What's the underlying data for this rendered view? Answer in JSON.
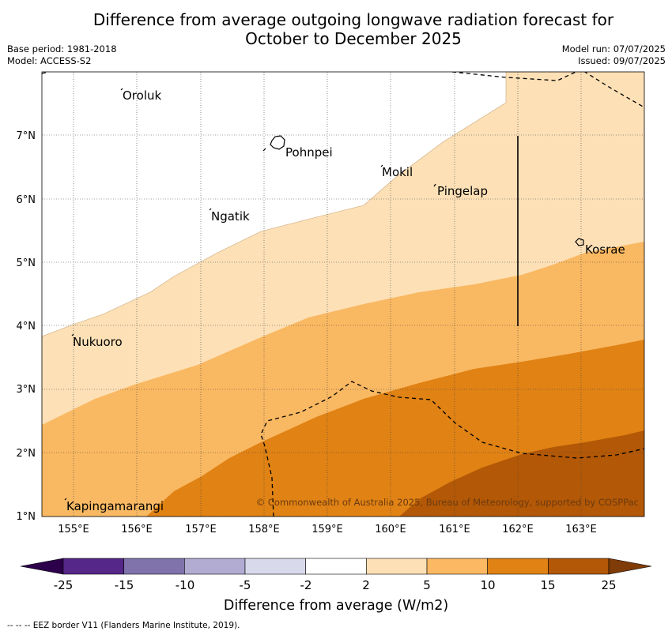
{
  "title_line1": "Difference from average outgoing longwave radiation forecast for",
  "title_line2": "October to December 2025",
  "meta_left": {
    "base_period": "Base period: 1981-2018",
    "model": "Model: ACCESS-S2"
  },
  "meta_right": {
    "model_run": "Model run: 07/07/2025",
    "issued": "Issued: 09/07/2025"
  },
  "copyright": "© Commonwealth of Australia 2025, Bureau of Meteorology, supported by COSPPac",
  "footer": "--  --  -- EEZ border V11 (Flanders Marine Institute, 2019).",
  "map": {
    "lon_ticks": [
      "155°E",
      "156°E",
      "157°E",
      "158°E",
      "159°E",
      "160°E",
      "161°E",
      "162°E",
      "163°E"
    ],
    "lat_ticks": [
      "1°N",
      "2°N",
      "3°N",
      "4°N",
      "5°N",
      "6°N",
      "7°N"
    ],
    "places": [
      "Oroluk",
      "Pohnpei",
      "Mokil",
      "Pingelap",
      "Ngatik",
      "Kosrae",
      "Nukuoro",
      "Kapingamarangi"
    ],
    "colors": {
      "band_2_5": "#fde0b6",
      "band_5_10": "#f9b862",
      "band_10_15": "#e08214",
      "band_15_25": "#b35806"
    }
  },
  "colorbar": {
    "label": "Difference from average (W/m2)",
    "ticks": [
      "-25",
      "-15",
      "-10",
      "-5",
      "-2",
      "2",
      "5",
      "10",
      "15",
      "25"
    ],
    "colors": [
      "#542788",
      "#8073ac",
      "#b2abd2",
      "#d8daeb",
      "#ffffff",
      "#fee0b6",
      "#fdb863",
      "#e08214",
      "#b35806"
    ],
    "low_extend": "#2d004b",
    "high_extend": "#7f3b08"
  }
}
